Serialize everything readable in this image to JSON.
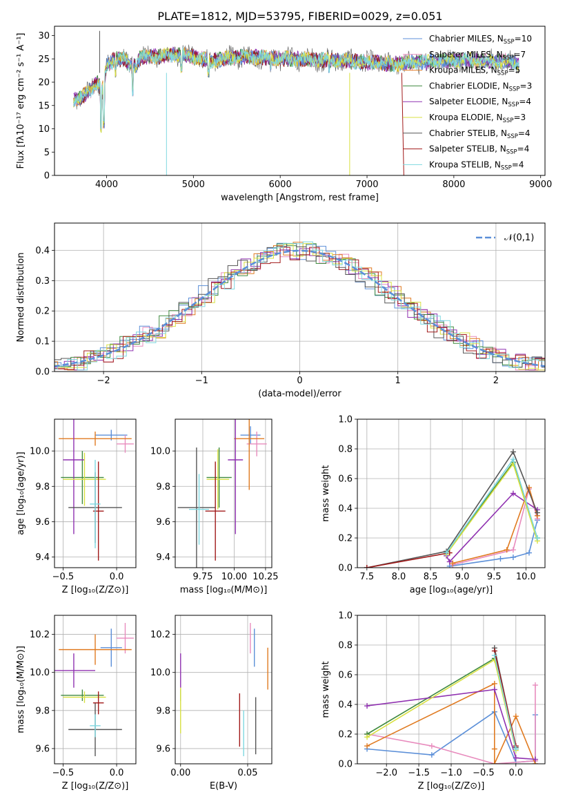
{
  "title": "PLATE=1812, MJD=53795, FIBERID=0029, z=0.051",
  "colors": {
    "chabrier_miles": "#5b8fd8",
    "salpeter_miles": "#e88bbd",
    "kroupa_miles": "#e07a20",
    "chabrier_elodie": "#3f8a3f",
    "salpeter_elodie": "#8f30b0",
    "kroupa_elodie": "#d8e040",
    "chabrier_stelib": "#555555",
    "salpeter_stelib": "#a01818",
    "kroupa_stelib": "#7ed8e0"
  },
  "chart_data": [
    {
      "id": "spectrum",
      "type": "line",
      "xlabel": "wavelength [Angstrom, rest frame]",
      "ylabel": "Flux [fλ10⁻¹⁷ erg cm⁻² s⁻¹ A⁻¹]",
      "xlim": [
        3400,
        9050
      ],
      "ylim": [
        0,
        32
      ],
      "xticks": [
        4000,
        5000,
        6000,
        7000,
        8000,
        9000
      ],
      "yticks": [
        0,
        5,
        10,
        15,
        20,
        25,
        30
      ],
      "legend_position": "top-right",
      "legend": [
        {
          "key": "chabrier_miles",
          "base": "Chabrier MILES, N",
          "sub": "SSP",
          "tail": "=10"
        },
        {
          "key": "salpeter_miles",
          "base": "Salpeter MILES, N",
          "sub": "SSP",
          "tail": "=7"
        },
        {
          "key": "kroupa_miles",
          "base": "Kroupa MILES, N",
          "sub": "SSP",
          "tail": "=5"
        },
        {
          "key": "chabrier_elodie",
          "base": "Chabrier ELODIE, N",
          "sub": "SSP",
          "tail": "=3"
        },
        {
          "key": "salpeter_elodie",
          "base": "Salpeter ELODIE, N",
          "sub": "SSP",
          "tail": "=4"
        },
        {
          "key": "kroupa_elodie",
          "base": "Kroupa ELODIE, N",
          "sub": "SSP",
          "tail": "=3"
        },
        {
          "key": "chabrier_stelib",
          "base": "Chabrier STELIB, N",
          "sub": "SSP",
          "tail": "=4"
        },
        {
          "key": "salpeter_stelib",
          "base": "Salpeter STELIB, N",
          "sub": "SSP",
          "tail": "=4"
        },
        {
          "key": "kroupa_stelib",
          "base": "Kroupa STELIB, N",
          "sub": "SSP",
          "tail": "=4"
        }
      ],
      "continuum": [
        [
          3620,
          16
        ],
        [
          3700,
          16.5
        ],
        [
          3800,
          18
        ],
        [
          3900,
          20
        ],
        [
          3950,
          18
        ],
        [
          4000,
          23.5
        ],
        [
          4100,
          25
        ],
        [
          4200,
          25
        ],
        [
          4300,
          23
        ],
        [
          4400,
          25.5
        ],
        [
          4600,
          25.5
        ],
        [
          4800,
          26
        ],
        [
          5000,
          25.5
        ],
        [
          5200,
          24.5
        ],
        [
          5400,
          25.2
        ],
        [
          5600,
          25.5
        ],
        [
          5800,
          25.3
        ],
        [
          6000,
          25
        ],
        [
          6200,
          25
        ],
        [
          6400,
          24.8
        ],
        [
          6600,
          24.7
        ],
        [
          6800,
          24.5
        ],
        [
          7000,
          24.3
        ],
        [
          7200,
          24
        ],
        [
          7400,
          24
        ],
        [
          7600,
          24.3
        ],
        [
          7800,
          24.5
        ],
        [
          8000,
          24.7
        ],
        [
          8200,
          24.7
        ],
        [
          8400,
          24.5
        ],
        [
          8600,
          24.5
        ],
        [
          8750,
          24
        ]
      ],
      "dips": [
        [
          3934,
          9
        ],
        [
          3969,
          10
        ],
        [
          4102,
          21
        ],
        [
          4300,
          17
        ],
        [
          4340,
          22
        ],
        [
          4861,
          22
        ],
        [
          5175,
          21
        ],
        [
          5890,
          22
        ],
        [
          6563,
          22
        ]
      ],
      "spikes": [
        [
          3920,
          31
        ],
        [
          4690,
          0
        ],
        [
          6800,
          0
        ],
        [
          7400,
          0
        ]
      ]
    },
    {
      "id": "residuals",
      "type": "histogram",
      "xlabel": "(data-model)/error",
      "ylabel": "Normed distribution",
      "xlim": [
        -2.5,
        2.5
      ],
      "ylim": [
        0,
        0.49
      ],
      "xticks": [
        -2,
        -1,
        0,
        1,
        2
      ],
      "yticks": [
        0.0,
        0.1,
        0.2,
        0.3,
        0.4
      ],
      "bin_width": 0.1,
      "legend_position": "top-right",
      "reference": {
        "label": "𝒩(0,1)",
        "type": "gaussian",
        "mean": 0,
        "sigma": 1
      }
    },
    {
      "id": "age_vs_Z",
      "type": "errorbar",
      "xlabel": "Z [log₁₀(Z/Z⊙)]",
      "ylabel": "age  [log₁₀(age/yr)]",
      "xlim": [
        -0.58,
        0.18
      ],
      "ylim": [
        9.34,
        10.18
      ],
      "xticks": [
        -0.5,
        0.0
      ],
      "yticks": [
        9.4,
        9.6,
        9.8,
        10.0
      ],
      "points": [
        {
          "key": "chabrier_miles",
          "x": -0.05,
          "xerr": 0.15,
          "y": 10.09,
          "yerr": 0.03
        },
        {
          "key": "salpeter_miles",
          "x": 0.08,
          "xerr": 0.08,
          "y": 10.04,
          "yerr": 0.05
        },
        {
          "key": "kroupa_miles",
          "x": -0.2,
          "xerr": 0.34,
          "y": 10.07,
          "yerr": 0.04
        },
        {
          "key": "chabrier_elodie",
          "x": -0.32,
          "xerr": 0.2,
          "y": 9.85,
          "yerr": 0.15
        },
        {
          "key": "salpeter_elodie",
          "x": -0.4,
          "xerr": 0.1,
          "y": 9.95,
          "yerr": 0.42
        },
        {
          "key": "kroupa_elodie",
          "x": -0.3,
          "xerr": 0.2,
          "y": 9.84,
          "yerr": 0.15
        },
        {
          "key": "chabrier_stelib",
          "x": -0.2,
          "xerr": 0.25,
          "y": 9.68,
          "yerr": 0.2
        },
        {
          "key": "salpeter_stelib",
          "x": -0.17,
          "xerr": 0.05,
          "y": 9.66,
          "yerr": 0.28
        },
        {
          "key": "kroupa_stelib",
          "x": -0.2,
          "xerr": 0.05,
          "y": 9.7,
          "yerr": 0.25
        }
      ]
    },
    {
      "id": "age_vs_mass",
      "type": "errorbar",
      "xlabel": "mass [log₁₀(M/M⊙)]",
      "ylabel": "",
      "xlim": [
        9.53,
        10.3
      ],
      "ylim": [
        9.34,
        10.18
      ],
      "xticks": [
        9.75,
        10.0,
        10.25
      ],
      "yticks": [
        9.4,
        9.6,
        9.8,
        10.0
      ],
      "points": [
        {
          "key": "chabrier_miles",
          "x": 10.13,
          "xerr": 0.08,
          "y": 10.09,
          "yerr": 0.05
        },
        {
          "key": "salpeter_miles",
          "x": 10.18,
          "xerr": 0.08,
          "y": 10.04,
          "yerr": 0.07
        },
        {
          "key": "kroupa_miles",
          "x": 10.12,
          "xerr": 0.12,
          "y": 10.07,
          "yerr": 0.29
        },
        {
          "key": "chabrier_elodie",
          "x": 9.88,
          "xerr": 0.1,
          "y": 9.85,
          "yerr": 0.17
        },
        {
          "key": "salpeter_elodie",
          "x": 10.01,
          "xerr": 0.06,
          "y": 9.95,
          "yerr": 0.42
        },
        {
          "key": "kroupa_elodie",
          "x": 9.87,
          "xerr": 0.09,
          "y": 9.84,
          "yerr": 0.17
        },
        {
          "key": "chabrier_stelib",
          "x": 9.7,
          "xerr": 0.15,
          "y": 9.68,
          "yerr": 0.34
        },
        {
          "key": "salpeter_stelib",
          "x": 9.85,
          "xerr": 0.08,
          "y": 9.66,
          "yerr": 0.28
        },
        {
          "key": "kroupa_stelib",
          "x": 9.72,
          "xerr": 0.08,
          "y": 9.67,
          "yerr": 0.2
        }
      ]
    },
    {
      "id": "weight_vs_age",
      "type": "line",
      "xlabel": "age  [log₁₀(age/yr)]",
      "ylabel": "mass weight",
      "xlim": [
        7.35,
        10.3
      ],
      "ylim": [
        0,
        1
      ],
      "xticks": [
        7.5,
        8.0,
        8.5,
        9.0,
        9.5,
        10.0
      ],
      "yticks": [
        0.0,
        0.2,
        0.4,
        0.6,
        0.8,
        1.0
      ],
      "grid": true,
      "series": [
        {
          "key": "chabrier_miles",
          "x": [
            8.8,
            9.6,
            9.8,
            10.05,
            10.18
          ],
          "y": [
            0.01,
            0.06,
            0.07,
            0.1,
            0.32
          ]
        },
        {
          "key": "salpeter_miles",
          "x": [
            8.85,
            9.8,
            10.05,
            10.18
          ],
          "y": [
            0.02,
            0.12,
            0.53,
            0.33
          ]
        },
        {
          "key": "kroupa_miles",
          "x": [
            8.85,
            9.7,
            10.05,
            10.18
          ],
          "y": [
            0.03,
            0.12,
            0.54,
            0.35
          ]
        },
        {
          "key": "chabrier_elodie",
          "x": [
            8.75,
            9.8,
            10.18
          ],
          "y": [
            0.1,
            0.71,
            0.2
          ]
        },
        {
          "key": "salpeter_elodie",
          "x": [
            8.75,
            8.8,
            9.8,
            10.18
          ],
          "y": [
            0.08,
            0.04,
            0.5,
            0.39
          ]
        },
        {
          "key": "kroupa_elodie",
          "x": [
            8.75,
            9.8,
            10.18
          ],
          "y": [
            0.09,
            0.7,
            0.18
          ]
        },
        {
          "key": "chabrier_stelib",
          "x": [
            7.5,
            8.75,
            9.8,
            10.18
          ],
          "y": [
            0.0,
            0.11,
            0.78,
            0.37
          ]
        },
        {
          "key": "salpeter_stelib",
          "x": [
            7.5,
            8.8
          ],
          "y": [
            0.0,
            0.1
          ]
        },
        {
          "key": "kroupa_stelib",
          "x": [
            8.75,
            9.8,
            10.18
          ],
          "y": [
            0.1,
            0.73,
            0.2
          ]
        }
      ]
    },
    {
      "id": "mass_vs_Z",
      "type": "errorbar",
      "xlabel": "Z [log₁₀(Z/Z⊙)]",
      "ylabel": "mass [log₁₀(M/M⊙)]",
      "xlim": [
        -0.58,
        0.18
      ],
      "ylim": [
        9.52,
        10.3
      ],
      "xticks": [
        -0.5,
        0.0
      ],
      "yticks": [
        9.6,
        9.8,
        10.0,
        10.2
      ],
      "points": [
        {
          "key": "chabrier_miles",
          "x": -0.05,
          "xerr": 0.1,
          "y": 10.13,
          "yerr": 0.1
        },
        {
          "key": "salpeter_miles",
          "x": 0.08,
          "xerr": 0.08,
          "y": 10.18,
          "yerr": 0.08
        },
        {
          "key": "kroupa_miles",
          "x": -0.2,
          "xerr": 0.34,
          "y": 10.12,
          "yerr": 0.08
        },
        {
          "key": "chabrier_elodie",
          "x": -0.32,
          "xerr": 0.2,
          "y": 9.88,
          "yerr": 0.03
        },
        {
          "key": "salpeter_elodie",
          "x": -0.4,
          "xerr": 0.2,
          "y": 10.01,
          "yerr": 0.09
        },
        {
          "key": "kroupa_elodie",
          "x": -0.3,
          "xerr": 0.2,
          "y": 9.87,
          "yerr": 0.03
        },
        {
          "key": "chabrier_stelib",
          "x": -0.2,
          "xerr": 0.25,
          "y": 9.7,
          "yerr": 0.14
        },
        {
          "key": "salpeter_stelib",
          "x": -0.17,
          "xerr": 0.05,
          "y": 9.84,
          "yerr": 0.06
        },
        {
          "key": "kroupa_stelib",
          "x": -0.2,
          "xerr": 0.05,
          "y": 9.72,
          "yerr": 0.06
        }
      ]
    },
    {
      "id": "mass_vs_ebv",
      "type": "errorbar",
      "xlabel": "E(B-V)",
      "ylabel": "",
      "xlim": [
        -0.004,
        0.068
      ],
      "ylim": [
        9.52,
        10.3
      ],
      "xticks": [
        0.0,
        0.05
      ],
      "yticks": [
        9.6,
        9.8,
        10.0,
        10.2
      ],
      "points": [
        {
          "key": "chabrier_miles",
          "x": 0.055,
          "xerr": 0,
          "y": 10.13,
          "yerr": 0.1
        },
        {
          "key": "salpeter_miles",
          "x": 0.052,
          "xerr": 0,
          "y": 10.18,
          "yerr": 0.08
        },
        {
          "key": "kroupa_miles",
          "x": 0.065,
          "xerr": 0,
          "y": 10.02,
          "yerr": 0.11
        },
        {
          "key": "chabrier_elodie",
          "x": 0.0,
          "xerr": 0,
          "y": 9.88,
          "yerr": 0.03
        },
        {
          "key": "salpeter_elodie",
          "x": 0.0,
          "xerr": 0,
          "y": 10.01,
          "yerr": 0.09
        },
        {
          "key": "kroupa_elodie",
          "x": 0.0,
          "xerr": 0,
          "y": 9.8,
          "yerr": 0.12
        },
        {
          "key": "chabrier_stelib",
          "x": 0.056,
          "xerr": 0,
          "y": 9.72,
          "yerr": 0.15
        },
        {
          "key": "salpeter_stelib",
          "x": 0.044,
          "xerr": 0,
          "y": 9.75,
          "yerr": 0.14
        },
        {
          "key": "kroupa_stelib",
          "x": 0.047,
          "xerr": 0,
          "y": 9.68,
          "yerr": 0.12
        }
      ]
    },
    {
      "id": "weight_vs_Z",
      "type": "line",
      "xlabel": "Z [log₁₀(Z/Z⊙)]",
      "ylabel": "mass weight",
      "xlim": [
        -2.45,
        0.45
      ],
      "ylim": [
        0,
        1
      ],
      "xticks": [
        -2.0,
        -1.5,
        -1.0,
        -0.5,
        0.0
      ],
      "yticks": [
        0.0,
        0.2,
        0.4,
        0.6,
        0.8,
        1.0
      ],
      "grid": true,
      "series": [
        {
          "key": "chabrier_miles",
          "x": [
            -2.3,
            -1.3,
            -0.33,
            0.0,
            0.3,
            0.3
          ],
          "y": [
            0.1,
            0.06,
            0.35,
            0.01,
            0.02,
            0.33
          ]
        },
        {
          "key": "salpeter_miles",
          "x": [
            -2.3,
            -1.3,
            -0.33,
            0.3,
            0.3
          ],
          "y": [
            0.2,
            0.12,
            0.0,
            0.02,
            0.53
          ]
        },
        {
          "key": "kroupa_miles",
          "x": [
            -2.3,
            -0.33,
            -0.33,
            -0.33,
            0.0,
            0.3
          ],
          "y": [
            0.12,
            0.54,
            0.1,
            0.0,
            0.32,
            0.0
          ]
        },
        {
          "key": "chabrier_elodie",
          "x": [
            -2.3,
            -0.33,
            0.0
          ],
          "y": [
            0.2,
            0.71,
            0.1
          ]
        },
        {
          "key": "salpeter_elodie",
          "x": [
            -2.3,
            -0.33,
            0.0,
            0.3
          ],
          "y": [
            0.39,
            0.5,
            0.04,
            0.03
          ]
        },
        {
          "key": "kroupa_elodie",
          "x": [
            -2.3,
            -0.33,
            0.0
          ],
          "y": [
            0.18,
            0.7,
            0.09
          ]
        },
        {
          "key": "chabrier_stelib",
          "x": [
            -0.33,
            0.0
          ],
          "y": [
            0.78,
            0.11
          ]
        },
        {
          "key": "salpeter_stelib",
          "x": [
            -0.33,
            0.0
          ],
          "y": [
            0.76,
            0.12
          ]
        },
        {
          "key": "kroupa_stelib",
          "x": [
            -0.33,
            0.0
          ],
          "y": [
            0.73,
            0.1
          ]
        }
      ]
    }
  ]
}
